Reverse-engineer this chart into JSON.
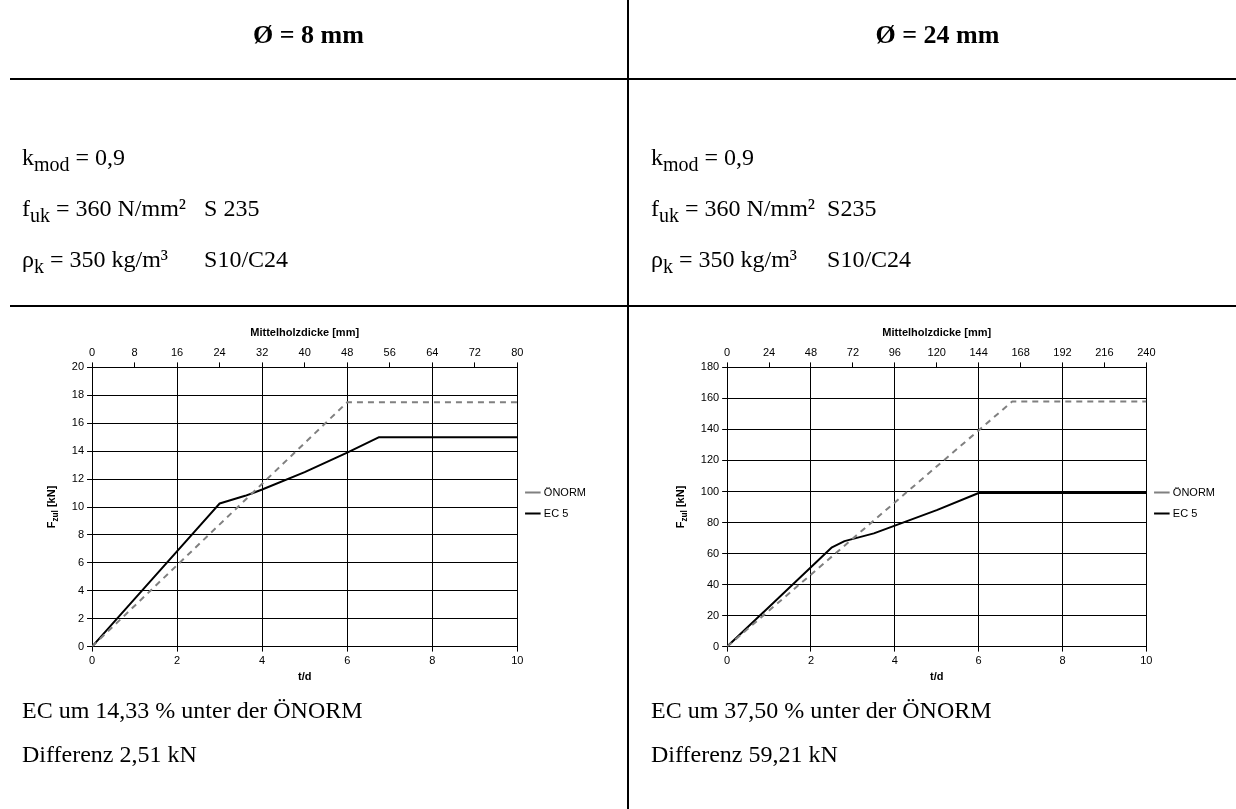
{
  "chart_data": [
    {
      "type": "line",
      "title": "Ø = 8 mm",
      "subtitle": "k$_{mod}$ = 0,9\nf$_{uk}$ = 360 N/mm²   S 235\nρ$_{k}$ = 350 kg/m³      S10/C24",
      "xlabel": "t/d",
      "ylabel": "F$_{zul}$ [kN]",
      "x2label": "Mittelholzdicke [mm]",
      "xlim": [
        0,
        10
      ],
      "xticks": [
        0,
        2,
        4,
        6,
        8,
        10
      ],
      "x2lim": [
        0,
        80
      ],
      "x2ticks": [
        0,
        8,
        16,
        24,
        32,
        40,
        48,
        56,
        64,
        72,
        80
      ],
      "ylim": [
        0,
        20
      ],
      "yticks": [
        0,
        2,
        4,
        6,
        8,
        10,
        12,
        14,
        16,
        18,
        20
      ],
      "grid": true,
      "legend": "right",
      "marker": "none",
      "series": [
        {
          "name": "ÖNORM",
          "color": "#808080",
          "line_style": "dashed",
          "x": [
            0,
            6,
            10
          ],
          "values": [
            0,
            17.5,
            17.5
          ]
        },
        {
          "name": "EC 5",
          "color": "#000000",
          "line_style": "solid",
          "x": [
            0,
            3,
            3.6,
            4,
            5,
            6,
            6.75,
            10
          ],
          "values": [
            0,
            10.25,
            10.8,
            11.25,
            12.5,
            13.9,
            15,
            15
          ]
        }
      ],
      "annotations": [
        "EC um 14,33 % unter der ÖNORM",
        "Differenz 2,51 kN"
      ]
    },
    {
      "type": "line",
      "title": "Ø = 24 mm",
      "subtitle": "k$_{mod}$ = 0,9\nf$_{uk}$ = 360 N/mm²  S235\nρ$_{k}$ = 350 kg/m³     S10/C24",
      "xlabel": "t/d",
      "ylabel": "F$_{zul}$ [kN]",
      "x2label": "Mittelholzdicke [mm]",
      "xlim": [
        0,
        10
      ],
      "xticks": [
        0,
        2,
        4,
        6,
        8,
        10
      ],
      "x2lim": [
        0,
        240
      ],
      "x2ticks": [
        0,
        24,
        48,
        72,
        96,
        120,
        144,
        168,
        192,
        216,
        240
      ],
      "ylim": [
        0,
        180
      ],
      "yticks": [
        0,
        20,
        40,
        60,
        80,
        100,
        120,
        140,
        160,
        180
      ],
      "grid": true,
      "legend": "right",
      "marker": "none",
      "series": [
        {
          "name": "ÖNORM",
          "color": "#808080",
          "line_style": "dashed",
          "x": [
            0,
            6.8,
            10
          ],
          "values": [
            0,
            158,
            158
          ]
        },
        {
          "name": "EC 5",
          "color": "#000000",
          "line_style": "solid",
          "x": [
            0,
            2.5,
            2.8,
            3.5,
            4,
            5,
            6,
            10
          ],
          "values": [
            0,
            64,
            68,
            73,
            78,
            88,
            99,
            99
          ]
        }
      ],
      "annotations": [
        "EC um 37,50 % unter der ÖNORM",
        "Differenz 59,21 kN"
      ]
    }
  ]
}
